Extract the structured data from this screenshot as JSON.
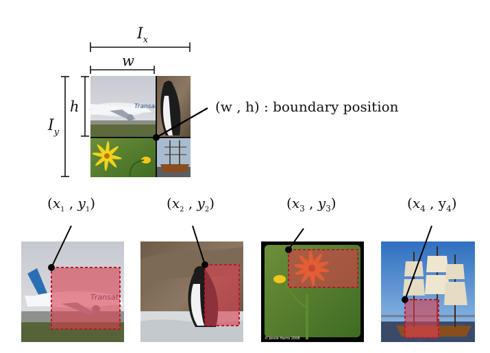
{
  "dims": {
    "ix": "I",
    "ix_sub": "x",
    "iy": "I",
    "iy_sub": "y",
    "w": "w",
    "h": "h"
  },
  "boundary_label": "(w , h) : boundary position",
  "crops": [
    {
      "var_x": "x",
      "sub_x": "1",
      "var_y": "y",
      "sub_y": "1",
      "scene": "airplane"
    },
    {
      "var_x": "x",
      "sub_x": "2",
      "var_y": "y",
      "sub_y": "2",
      "scene": "penguin"
    },
    {
      "var_x": "x",
      "sub_x": "3",
      "var_y": "y",
      "sub_y": "3",
      "scene": "flower"
    },
    {
      "var_x": "x",
      "sub_x": "4",
      "var_y": "y",
      "sub_y": "4",
      "scene": "ship"
    }
  ],
  "colors": {
    "highlight_fill": "#d9404f",
    "highlight_stroke": "#c0142a",
    "sky_blue": "#3f7fc9"
  },
  "watermark": "© Jessie Harris 2008"
}
